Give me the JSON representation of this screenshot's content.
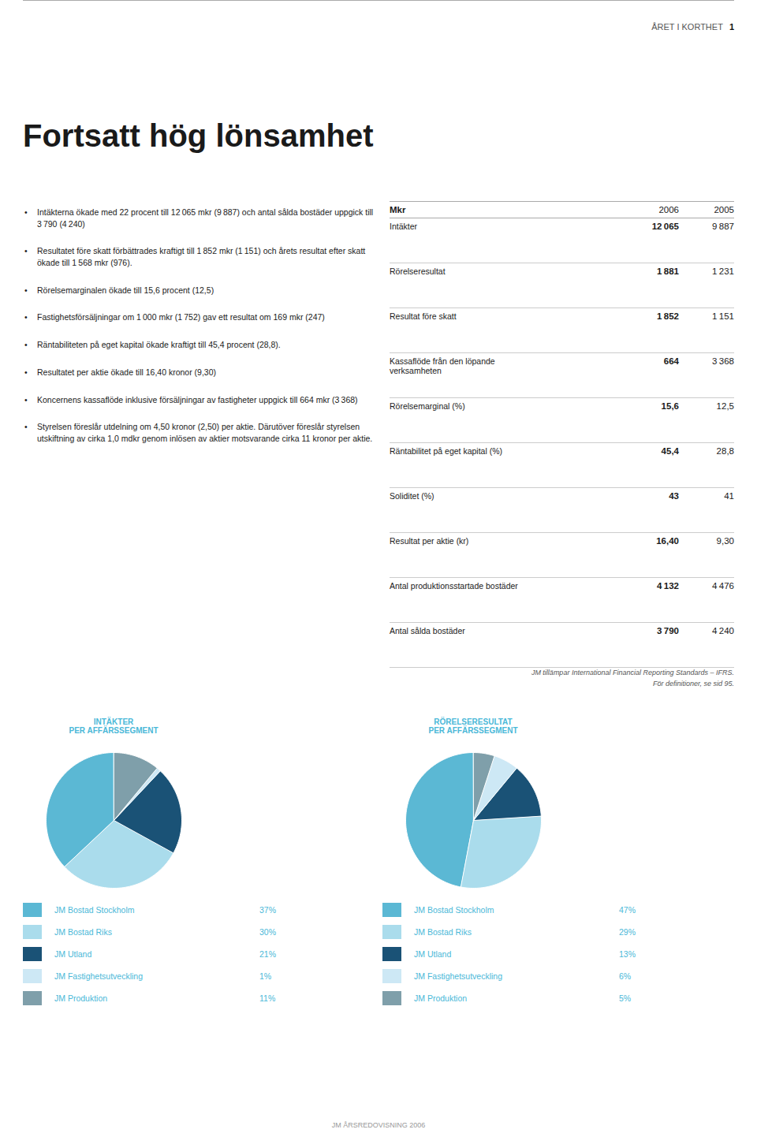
{
  "page_header": [
    "ÅRET I KORTHET",
    "1"
  ],
  "heading": "Fortsatt hög lönsamhet",
  "bullets": [
    "Intäkterna ökade med 22 procent till 12 065 mkr (9 887) och antal sålda bostäder uppgick till 3 790 (4 240)",
    "Resultatet före skatt förbättrades kraftigt till 1 852 mkr (1 151) och årets resultat efter skatt ökade till 1 568 mkr (976).",
    "Rörelsemarginalen ökade till 15,6 procent (12,5)",
    "Fastighetsförsäljningar om 1 000 mkr (1 752) gav ett resultat om 169 mkr (247)",
    "Räntabiliteten på eget kapital ökade kraftigt till 45,4 procent (28,8).",
    "Resultatet per aktie ökade till 16,40 kronor (9,30)",
    "Koncernens kassaflöde inklusive försäljningar av fastigheter uppgick till 664 mkr (3 368)",
    "Styrelsen föreslår utdelning om 4,50 kronor (2,50) per aktie. Därutöver föreslår styrelsen utskiftning av cirka 1,0 mdkr genom inlösen av aktier motsvarande cirka 11 kronor per aktie."
  ],
  "table": {
    "header": [
      "Mkr",
      "2006",
      "2005"
    ],
    "rows": [
      [
        "Intäkter",
        "12 065",
        "9 887"
      ],
      [
        "Rörelseresultat",
        "1 881",
        "1 231"
      ],
      [
        "Resultat före skatt",
        "1 852",
        "1 151"
      ],
      [
        "Kassaflöde från den löpande\nverksamheten",
        "664",
        "3 368"
      ],
      [
        "Rörelsemarginal (%)",
        "15,6",
        "12,5"
      ],
      [
        "Räntabilitet på eget kapital (%)",
        "45,4",
        "28,8"
      ],
      [
        "Soliditet (%)",
        "43",
        "41"
      ],
      [
        "Resultat per aktie (kr)",
        "16,40",
        "9,30"
      ],
      [
        "Antal produktionsstartade bostäder",
        "4 132",
        "4 476"
      ],
      [
        "Antal sålda bostäder",
        "3 790",
        "4 240"
      ]
    ]
  },
  "footnotes": [
    "JM tillämpar International Financial Reporting Standards – IFRS.",
    "För definitioner, se sid 95."
  ],
  "footer": "JM ÅRSREDOVISNING 2006",
  "chart_data": [
    {
      "type": "pie",
      "title": "INTÄKTER\nPER AFFÄRSSEGMENT",
      "categories": [
        "JM Bostad Stockholm",
        "JM Bostad Riks",
        "JM Utland",
        "JM Fastighetsutveckling",
        "JM Produktion"
      ],
      "values": [
        37,
        30,
        21,
        1,
        11
      ],
      "value_labels": [
        "37%",
        "30%",
        "21%",
        "1%",
        "11%"
      ],
      "colors": [
        "#5bb8d4",
        "#aadcec",
        "#1a5276",
        "#cde8f5",
        "#7f9faa"
      ],
      "legend": "bottom"
    },
    {
      "type": "pie",
      "title": "RÖRELSERESULTAT\nPER AFFÄRSSEGMENT",
      "categories": [
        "JM Bostad Stockholm",
        "JM Bostad Riks",
        "JM Utland",
        "JM Fastighetsutveckling",
        "JM Produktion"
      ],
      "values": [
        47,
        29,
        13,
        6,
        5
      ],
      "value_labels": [
        "47%",
        "29%",
        "13%",
        "6%",
        "5%"
      ],
      "colors": [
        "#5bb8d4",
        "#aadcec",
        "#1a5276",
        "#cde8f5",
        "#7f9faa"
      ],
      "legend": "bottom"
    }
  ]
}
